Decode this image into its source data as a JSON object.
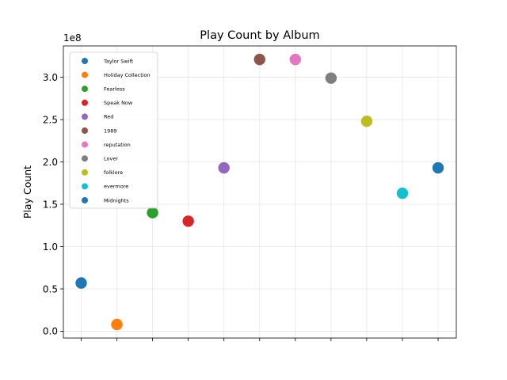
{
  "chart_data": {
    "type": "scatter",
    "title": "Play Count by Album",
    "xlabel": "",
    "ylabel": "Play Count",
    "y_offset_label": "1e8",
    "categories": [
      "Taylor Swift",
      "Holiday Collection",
      "Fearless",
      "Speak Now",
      "Red",
      "1989",
      "reputation",
      "Lover",
      "folklore",
      "evermore",
      "Midnights"
    ],
    "values": [
      57000000,
      8000000,
      140000000,
      130000000,
      193000000,
      321000000,
      321000000,
      299000000,
      248000000,
      163000000,
      193000000
    ],
    "colors": [
      "#1f77b4",
      "#ff7f0e",
      "#2ca02c",
      "#d62728",
      "#9467bd",
      "#8c564b",
      "#e377c2",
      "#7f7f7f",
      "#bcbd22",
      "#17becf",
      "#1f77b4"
    ],
    "y_ticks": [
      0,
      50000000,
      100000000,
      150000000,
      200000000,
      250000000,
      300000000
    ],
    "y_tick_labels": [
      "0.0",
      "0.5",
      "1.0",
      "1.5",
      "2.0",
      "2.5",
      "3.0"
    ],
    "ylim": [
      -8000000,
      337000000
    ],
    "grid": true,
    "legend_position": "upper-left",
    "series": [
      {
        "name": "Taylor Swift",
        "color": "#1f77b4"
      },
      {
        "name": "Holiday Collection",
        "color": "#ff7f0e"
      },
      {
        "name": "Fearless",
        "color": "#2ca02c"
      },
      {
        "name": "Speak Now",
        "color": "#d62728"
      },
      {
        "name": "Red",
        "color": "#9467bd"
      },
      {
        "name": "1989",
        "color": "#8c564b"
      },
      {
        "name": "reputation",
        "color": "#e377c2"
      },
      {
        "name": "Lover",
        "color": "#7f7f7f"
      },
      {
        "name": "folklore",
        "color": "#bcbd22"
      },
      {
        "name": "evermore",
        "color": "#17becf"
      },
      {
        "name": "Midnights",
        "color": "#1f77b4"
      }
    ]
  }
}
